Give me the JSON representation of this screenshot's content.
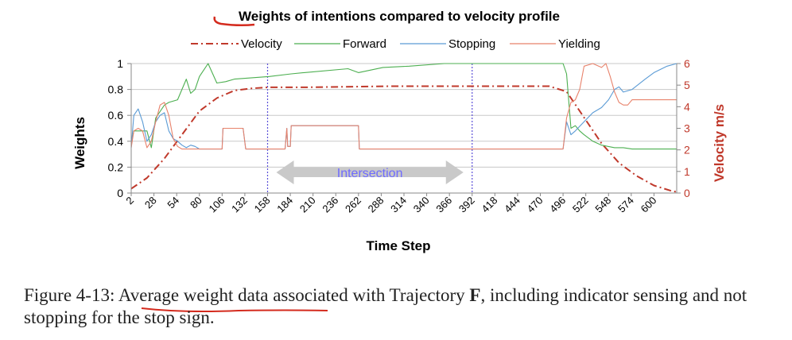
{
  "chart_data": {
    "type": "line",
    "title": "Weights of intentions compared to velocity profile",
    "xlabel": "Time Step",
    "ylabel": "Weights",
    "y2label": "Velocity m/s",
    "x_tick_labels": [
      "2",
      "28",
      "54",
      "80",
      "106",
      "132",
      "158",
      "184",
      "210",
      "236",
      "262",
      "288",
      "314",
      "340",
      "366",
      "392",
      "418",
      "444",
      "470",
      "496",
      "522",
      "548",
      "574",
      "600"
    ],
    "xlim": [
      2,
      626
    ],
    "ylim": [
      0,
      1
    ],
    "y_ticks": [
      "0",
      "0.2",
      "0.4",
      "0.6",
      "0.8",
      "1"
    ],
    "y2lim": [
      0,
      6
    ],
    "y2_ticks": [
      "0",
      "1",
      "2",
      "3",
      "4",
      "5",
      "6"
    ],
    "grid": true,
    "legend_position": "top",
    "vertical_markers": [
      158,
      392
    ],
    "annotation": {
      "text": "Intersection",
      "x_from": 168,
      "x_to": 382
    },
    "series": [
      {
        "name": "Velocity",
        "axis": "right",
        "color": "#c0392b",
        "style": "dash-dot",
        "x": [
          2,
          20,
          40,
          60,
          80,
          100,
          120,
          140,
          160,
          200,
          300,
          400,
          480,
          500,
          520,
          540,
          560,
          580,
          600,
          620,
          626
        ],
        "y": [
          0.2,
          0.7,
          1.6,
          2.7,
          3.8,
          4.4,
          4.75,
          4.85,
          4.9,
          4.9,
          4.95,
          4.95,
          4.95,
          4.7,
          3.5,
          2.3,
          1.4,
          0.8,
          0.35,
          0.1,
          0.05
        ]
      },
      {
        "name": "Forward",
        "axis": "left",
        "color": "#4caf50",
        "style": "solid",
        "x": [
          2,
          5,
          10,
          20,
          25,
          30,
          40,
          45,
          55,
          60,
          65,
          70,
          75,
          80,
          90,
          100,
          110,
          120,
          140,
          160,
          185,
          200,
          250,
          262,
          290,
          320,
          360,
          400,
          480,
          496,
          500,
          505,
          510,
          515,
          520,
          530,
          540,
          555,
          565,
          575,
          600,
          626
        ],
        "y": [
          0.38,
          0.48,
          0.48,
          0.48,
          0.35,
          0.58,
          0.68,
          0.7,
          0.72,
          0.8,
          0.88,
          0.77,
          0.8,
          0.9,
          1.0,
          0.85,
          0.86,
          0.88,
          0.89,
          0.9,
          0.92,
          0.93,
          0.96,
          0.93,
          0.97,
          0.98,
          1.0,
          1.0,
          1.0,
          1.0,
          0.92,
          0.5,
          0.52,
          0.48,
          0.45,
          0.4,
          0.37,
          0.35,
          0.35,
          0.34,
          0.34,
          0.34
        ]
      },
      {
        "name": "Stopping",
        "axis": "left",
        "color": "#5b9bd5",
        "style": "solid",
        "x": [
          2,
          5,
          10,
          15,
          20,
          25,
          30,
          35,
          40,
          45,
          50,
          55,
          60,
          65,
          70,
          75,
          80,
          90,
          100,
          106,
          107,
          130,
          133,
          150,
          178,
          180,
          181,
          184,
          185,
          200,
          250,
          262,
          263,
          300,
          400,
          496,
          500,
          505,
          510,
          520,
          530,
          540,
          548,
          555,
          560,
          565,
          575,
          590,
          600,
          615,
          626
        ],
        "y": [
          0.35,
          0.6,
          0.65,
          0.55,
          0.4,
          0.45,
          0.55,
          0.6,
          0.62,
          0.48,
          0.42,
          0.4,
          0.37,
          0.35,
          0.37,
          0.36,
          0.34,
          0.34,
          0.34,
          0.34,
          0.5,
          0.5,
          0.34,
          0.34,
          0.34,
          0.5,
          0.36,
          0.36,
          0.52,
          0.52,
          0.52,
          0.52,
          0.34,
          0.34,
          0.34,
          0.34,
          0.55,
          0.45,
          0.48,
          0.55,
          0.62,
          0.66,
          0.72,
          0.8,
          0.82,
          0.78,
          0.8,
          0.88,
          0.93,
          0.98,
          1.0
        ]
      },
      {
        "name": "Yielding",
        "axis": "left",
        "color": "#e8826b",
        "style": "solid",
        "x": [
          2,
          5,
          10,
          15,
          20,
          25,
          30,
          35,
          40,
          45,
          50,
          55,
          60,
          65,
          70,
          75,
          80,
          90,
          100,
          106,
          107,
          130,
          133,
          150,
          178,
          180,
          181,
          184,
          185,
          200,
          250,
          262,
          263,
          300,
          400,
          496,
          500,
          505,
          510,
          515,
          520,
          530,
          540,
          545,
          550,
          555,
          560,
          565,
          570,
          575,
          580,
          600,
          626
        ],
        "y": [
          0.35,
          0.48,
          0.5,
          0.48,
          0.35,
          0.4,
          0.55,
          0.68,
          0.7,
          0.6,
          0.42,
          0.36,
          0.34,
          0.34,
          0.34,
          0.34,
          0.34,
          0.34,
          0.34,
          0.34,
          0.5,
          0.5,
          0.34,
          0.34,
          0.34,
          0.5,
          0.36,
          0.36,
          0.52,
          0.52,
          0.52,
          0.52,
          0.34,
          0.34,
          0.34,
          0.34,
          0.58,
          0.7,
          0.72,
          0.8,
          0.98,
          1.0,
          0.97,
          1.0,
          0.9,
          0.78,
          0.7,
          0.68,
          0.68,
          0.72,
          0.72,
          0.72,
          0.72
        ]
      }
    ]
  },
  "caption": {
    "prefix": "Figure 4-13: ",
    "underlined": "Average weight data",
    "middle": " associated with Trajectory ",
    "bold": "F",
    "suffix": ", including indicator sensing and not stopping for the stop sign."
  }
}
